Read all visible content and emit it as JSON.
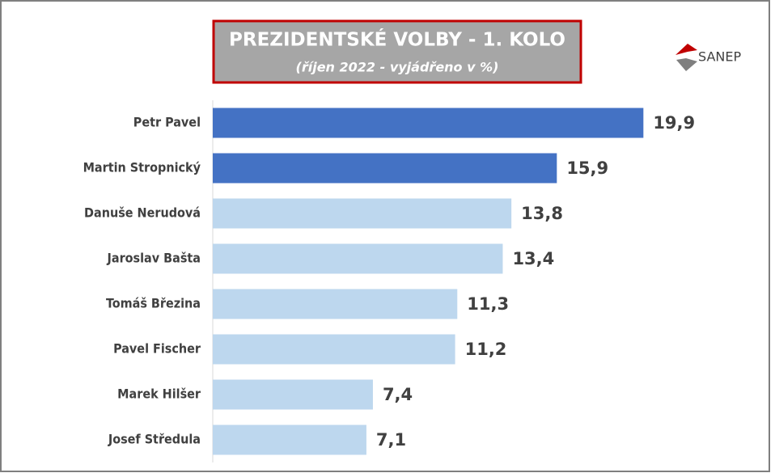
{
  "chart_data": {
    "type": "hbar",
    "title": "PREZIDENTSKÉ VOLBY - 1. KOLO",
    "subtitle": "(říjen 2022 - vyjádřeno v %)",
    "logo": "SANEP",
    "categories": [
      "Petr Pavel",
      "Martin Stropnický",
      "Danuše Nerudová",
      "Jaroslav Bašta",
      "Tomáš Březina",
      "Pavel Fischer",
      "Marek Hilšer",
      "Josef Středula"
    ],
    "values": [
      19.9,
      15.9,
      13.8,
      13.4,
      11.3,
      11.2,
      7.4,
      7.1
    ],
    "value_labels": [
      "19,9",
      "15,9",
      "13,8",
      "13,4",
      "11,3",
      "11,2",
      "7,4",
      "7,1"
    ],
    "colors": [
      "#4472c4",
      "#4472c4",
      "#bdd7ee",
      "#bdd7ee",
      "#bdd7ee",
      "#bdd7ee",
      "#bdd7ee",
      "#bdd7ee"
    ],
    "xlim": [
      0,
      20
    ]
  }
}
